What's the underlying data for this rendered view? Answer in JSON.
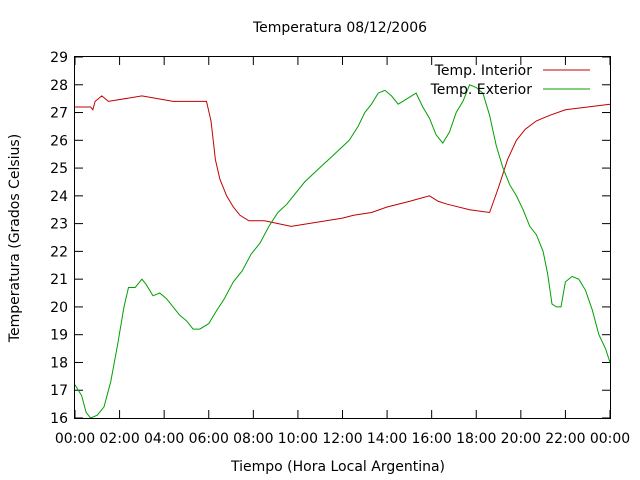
{
  "chart_data": {
    "type": "line",
    "title": "Temperatura 08/12/2006",
    "xlabel": "Tiempo (Hora Local Argentina)",
    "ylabel": "Temperatura (Grados Celsius)",
    "xlim": [
      0,
      24
    ],
    "ylim": [
      16,
      29
    ],
    "x_ticks": [
      "00:00",
      "02:00",
      "04:00",
      "06:00",
      "08:00",
      "10:00",
      "12:00",
      "14:00",
      "16:00",
      "18:00",
      "20:00",
      "22:00",
      "00:00"
    ],
    "y_ticks": [
      "16",
      "17",
      "18",
      "19",
      "20",
      "21",
      "22",
      "23",
      "24",
      "25",
      "26",
      "27",
      "28",
      "29"
    ],
    "grid": false,
    "legend_position": "top-right",
    "colors": {
      "interior": "#c00000",
      "exterior": "#00a000"
    },
    "series": [
      {
        "name": "Temp. Interior",
        "color": "#c00000",
        "x": [
          0,
          0.7,
          0.8,
          0.9,
          1.2,
          1.5,
          3.0,
          4.4,
          5.0,
          5.9,
          6.1,
          6.3,
          6.5,
          6.8,
          7.1,
          7.4,
          7.8,
          8.5,
          9.7,
          12,
          12.5,
          13.3,
          14,
          15,
          15.9,
          16.3,
          16.7,
          17.7,
          18.6,
          19.0,
          19.4,
          19.8,
          20.2,
          20.7,
          21.3,
          22.0,
          23.0,
          24.0
        ],
        "values": [
          27.2,
          27.2,
          27.1,
          27.4,
          27.6,
          27.4,
          27.6,
          27.4,
          27.4,
          27.4,
          26.7,
          25.3,
          24.6,
          24.0,
          23.6,
          23.3,
          23.1,
          23.1,
          22.9,
          23.2,
          23.3,
          23.4,
          23.6,
          23.8,
          24.0,
          23.8,
          23.7,
          23.5,
          23.4,
          24.3,
          25.3,
          26.0,
          26.4,
          26.7,
          26.9,
          27.1,
          27.2,
          27.3
        ]
      },
      {
        "name": "Temp. Exterior",
        "color": "#00a000",
        "x": [
          0,
          0.3,
          0.5,
          0.7,
          1.0,
          1.3,
          1.6,
          1.9,
          2.2,
          2.4,
          2.7,
          3.0,
          3.2,
          3.5,
          3.8,
          4.1,
          4.4,
          4.7,
          5.0,
          5.3,
          5.6,
          6.0,
          6.3,
          6.7,
          7.1,
          7.5,
          7.9,
          8.3,
          8.7,
          9.1,
          9.5,
          9.9,
          10.3,
          10.7,
          11.1,
          11.5,
          11.9,
          12.3,
          12.7,
          13.0,
          13.3,
          13.6,
          13.9,
          14.2,
          14.5,
          14.9,
          15.3,
          15.6,
          15.9,
          16.2,
          16.5,
          16.8,
          17.1,
          17.4,
          17.7,
          18.0,
          18.3,
          18.6,
          18.9,
          19.2,
          19.5,
          19.8,
          20.1,
          20.4,
          20.7,
          21.0,
          21.2,
          21.4,
          21.6,
          21.8,
          22.0,
          22.3,
          22.6,
          22.9,
          23.2,
          23.5,
          23.8,
          24.0
        ],
        "values": [
          17.2,
          16.8,
          16.2,
          16.0,
          16.1,
          16.4,
          17.3,
          18.6,
          20.0,
          20.7,
          20.7,
          21.0,
          20.8,
          20.4,
          20.5,
          20.3,
          20.0,
          19.7,
          19.5,
          19.2,
          19.2,
          19.4,
          19.8,
          20.3,
          20.9,
          21.3,
          21.9,
          22.3,
          22.9,
          23.4,
          23.7,
          24.1,
          24.5,
          24.8,
          25.1,
          25.4,
          25.7,
          26.0,
          26.5,
          27.0,
          27.3,
          27.7,
          27.8,
          27.6,
          27.3,
          27.5,
          27.7,
          27.2,
          26.8,
          26.2,
          25.9,
          26.3,
          27.0,
          27.4,
          28.0,
          27.9,
          27.7,
          26.9,
          25.8,
          25.0,
          24.4,
          24.0,
          23.5,
          22.9,
          22.6,
          22.0,
          21.2,
          20.1,
          20.0,
          20.0,
          20.9,
          21.1,
          21.0,
          20.6,
          19.9,
          19.0,
          18.5,
          18.0
        ]
      }
    ]
  }
}
